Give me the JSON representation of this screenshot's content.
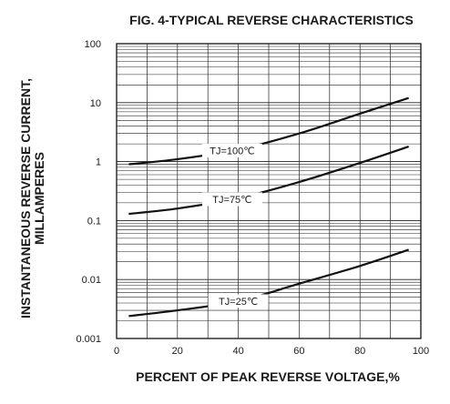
{
  "chart_data": {
    "type": "line",
    "title": "FIG. 4-TYPICAL REVERSE CHARACTERISTICS",
    "xlabel": "PERCENT OF PEAK REVERSE VOLTAGE,%",
    "ylabel_line1": "INSTANTANEOUS REVERSE CURRENT,",
    "ylabel_line2": "MILLAMPERES",
    "x_scale": "linear",
    "y_scale": "log",
    "xlim": [
      0,
      100
    ],
    "ylim": [
      0.001,
      100
    ],
    "grid": true,
    "x_ticks": [
      "0",
      "20",
      "40",
      "60",
      "80",
      "100"
    ],
    "x_tick_values": [
      0,
      20,
      40,
      60,
      80,
      100
    ],
    "y_ticks": [
      "0.001",
      "0.01",
      "0.1",
      "1",
      "10",
      "100"
    ],
    "y_tick_values": [
      0.001,
      0.01,
      0.1,
      1,
      10,
      100
    ],
    "series": [
      {
        "name": "TJ=100℃",
        "label_at_x": 38,
        "points": [
          [
            4,
            0.9
          ],
          [
            20,
            1.1
          ],
          [
            40,
            1.6
          ],
          [
            60,
            3.0
          ],
          [
            80,
            6.5
          ],
          [
            96,
            12
          ]
        ]
      },
      {
        "name": "TJ=75℃",
        "label_at_x": 38,
        "points": [
          [
            4,
            0.13
          ],
          [
            20,
            0.16
          ],
          [
            40,
            0.24
          ],
          [
            60,
            0.45
          ],
          [
            80,
            0.95
          ],
          [
            96,
            1.8
          ]
        ]
      },
      {
        "name": "TJ=25℃",
        "label_at_x": 40,
        "points": [
          [
            4,
            0.0024
          ],
          [
            20,
            0.003
          ],
          [
            40,
            0.0043
          ],
          [
            60,
            0.0085
          ],
          [
            80,
            0.017
          ],
          [
            96,
            0.032
          ]
        ]
      }
    ]
  }
}
